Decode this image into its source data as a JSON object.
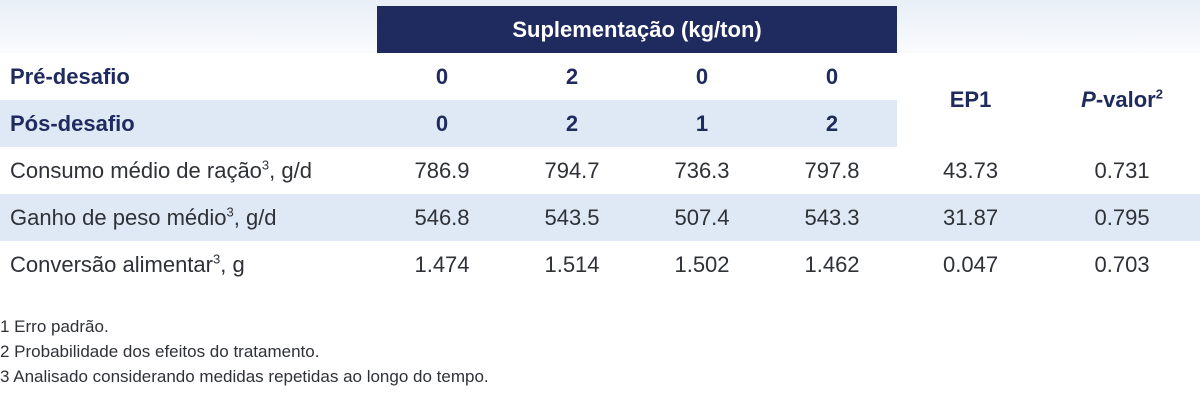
{
  "header": {
    "supplementation": "Suplementação (kg/ton)",
    "ep": "EP1",
    "pvalue_italic": "P",
    "pvalue_rest": "-valor",
    "pvalue_sup": "2"
  },
  "pre": {
    "label": "Pré-desafio",
    "values": [
      "0",
      "2",
      "0",
      "0"
    ]
  },
  "pos": {
    "label": "Pós-desafio",
    "values": [
      "0",
      "2",
      "1",
      "2"
    ]
  },
  "rows": [
    {
      "label": "Consumo médio de ração",
      "sup": "3",
      "unit": ", g/d",
      "values": [
        "786.9",
        "794.7",
        "736.3",
        "797.8"
      ],
      "ep": "43.73",
      "p": "0.731"
    },
    {
      "label": "Ganho de peso médio",
      "sup": "3",
      "unit": ", g/d",
      "values": [
        "546.8",
        "543.5",
        "507.4",
        "543.3"
      ],
      "ep": "31.87",
      "p": "0.795"
    },
    {
      "label": "Conversão alimentar",
      "sup": "3",
      "unit": ", g",
      "values": [
        "1.474",
        "1.514",
        "1.502",
        "1.462"
      ],
      "ep": "0.047",
      "p": "0.703"
    }
  ],
  "notes": [
    "1 Erro padrão.",
    "2 Probabilidade dos efeitos do tratamento.",
    "3 Analisado considerando medidas repetidas ao longo do tempo."
  ],
  "colors": {
    "header_bg": "#1f2a5e",
    "band_bg": "#dfe9f5",
    "accent_text": "#1f2a5e"
  }
}
